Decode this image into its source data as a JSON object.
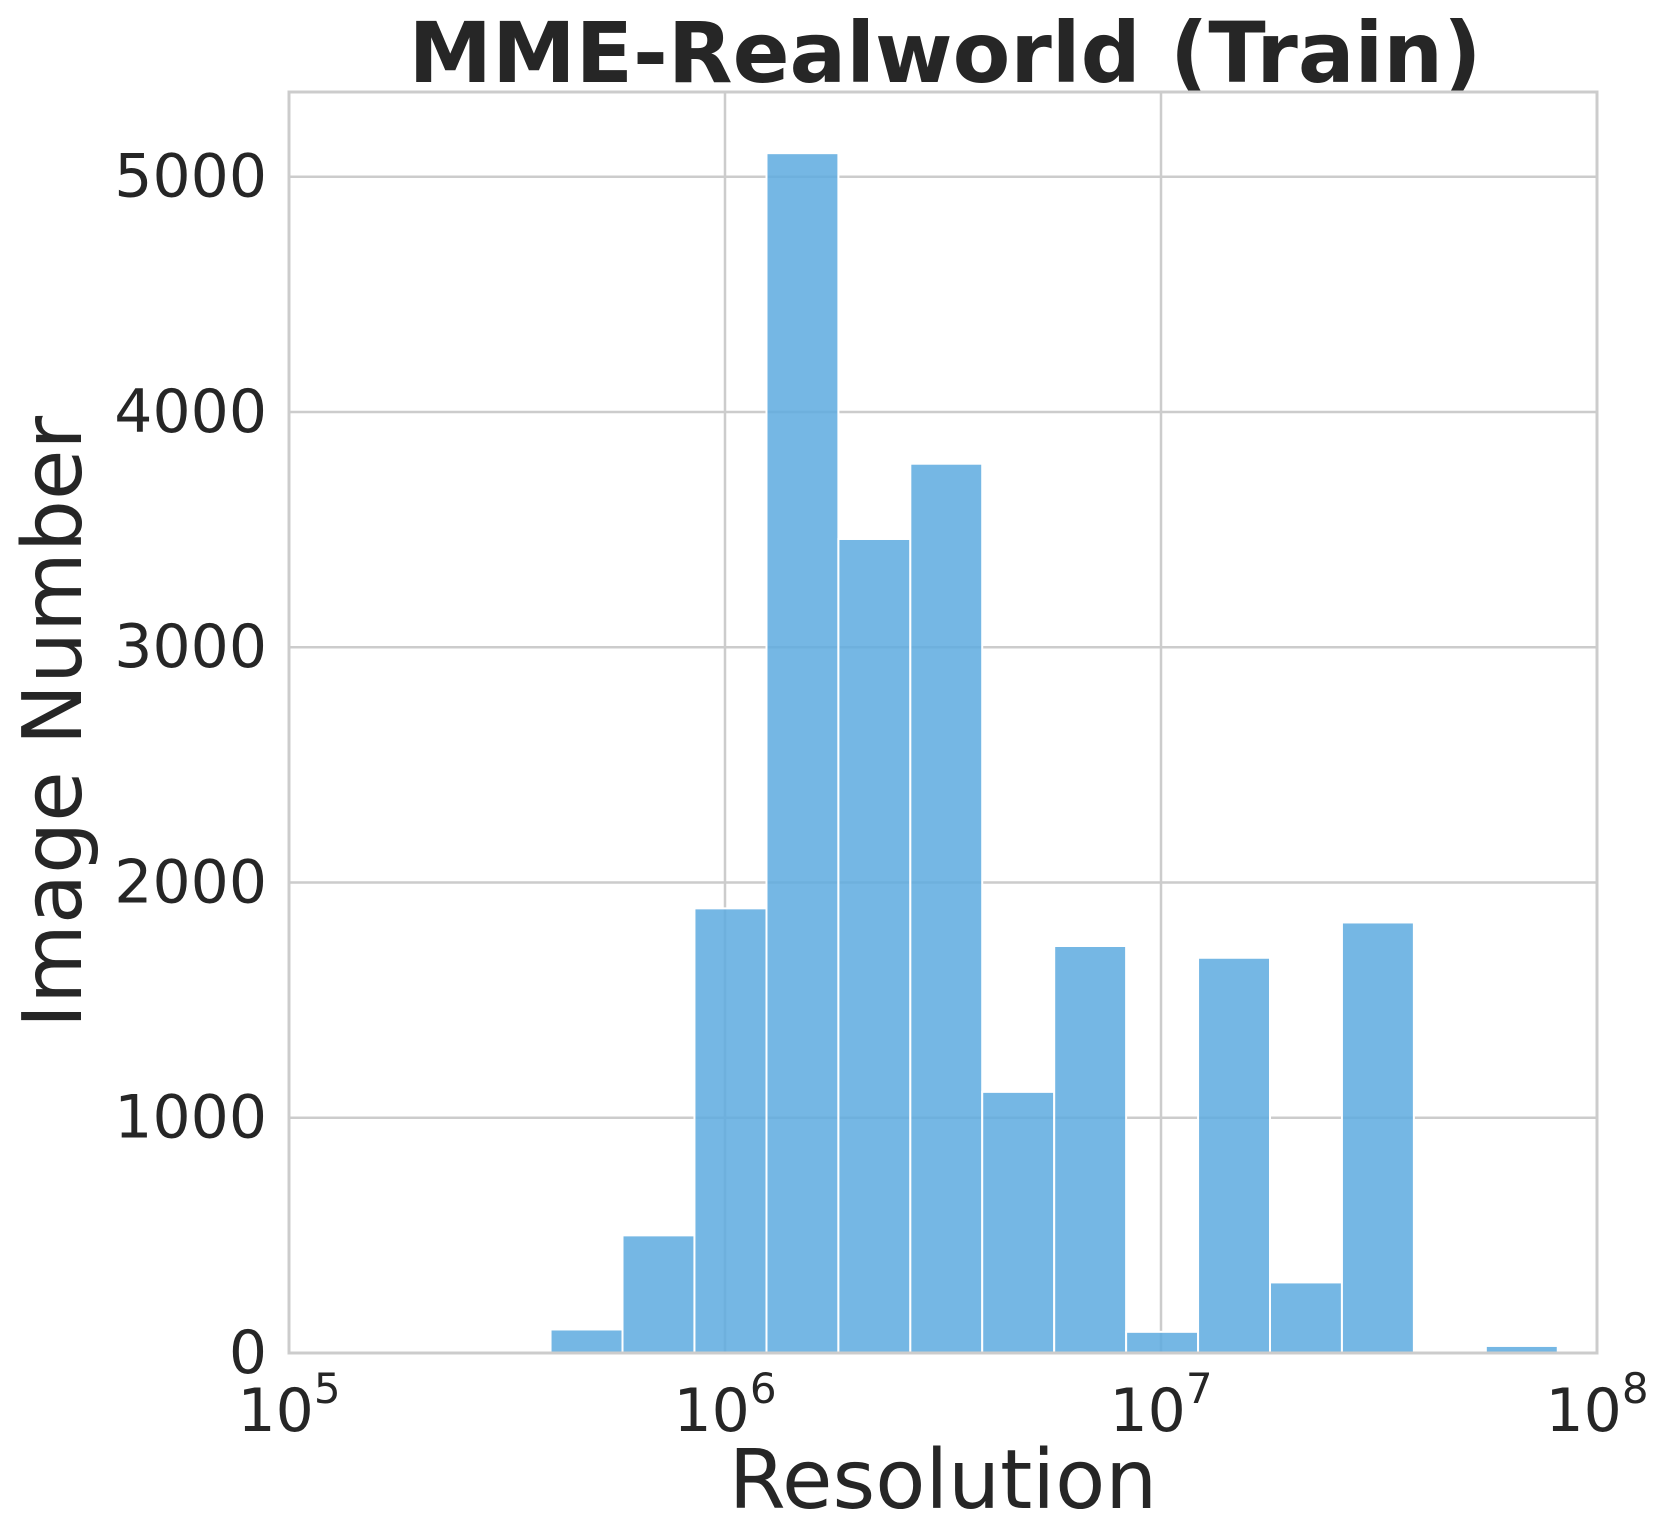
{
  "chart_data": {
    "type": "bar",
    "title": "MME-Realworld (Train)",
    "xlabel": "Resolution",
    "ylabel": "Image Number",
    "x_scale": "log",
    "xlim": [
      100000,
      100000000
    ],
    "ylim": [
      0,
      5360
    ],
    "x_ticks": [
      {
        "base": "10",
        "exp": "5",
        "value": 100000
      },
      {
        "base": "10",
        "exp": "6",
        "value": 1000000
      },
      {
        "base": "10",
        "exp": "7",
        "value": 10000000
      },
      {
        "base": "10",
        "exp": "8",
        "value": 100000000
      }
    ],
    "y_ticks": [
      {
        "label": "0",
        "value": 0
      },
      {
        "label": "1000",
        "value": 1000
      },
      {
        "label": "2000",
        "value": 2000
      },
      {
        "label": "3000",
        "value": 3000
      },
      {
        "label": "4000",
        "value": 4000
      },
      {
        "label": "5000",
        "value": 5000
      }
    ],
    "grid": true,
    "bar_color": "#5DAADF",
    "bins": [
      {
        "x0": 398000,
        "x1": 582000,
        "value": 100
      },
      {
        "x0": 582000,
        "x1": 851000,
        "value": 500
      },
      {
        "x0": 851000,
        "x1": 1245000,
        "value": 1890
      },
      {
        "x0": 1245000,
        "x1": 1820000,
        "value": 5100
      },
      {
        "x0": 1820000,
        "x1": 2661000,
        "value": 3460
      },
      {
        "x0": 2661000,
        "x1": 3890000,
        "value": 3780
      },
      {
        "x0": 3890000,
        "x1": 5689000,
        "value": 1110
      },
      {
        "x0": 5689000,
        "x1": 8318000,
        "value": 1730
      },
      {
        "x0": 8318000,
        "x1": 12162000,
        "value": 90
      },
      {
        "x0": 12162000,
        "x1": 17783000,
        "value": 1680
      },
      {
        "x0": 17783000,
        "x1": 26001000,
        "value": 300
      },
      {
        "x0": 26001000,
        "x1": 38019000,
        "value": 1830
      },
      {
        "x0": 38019000,
        "x1": 55590000,
        "value": 0
      },
      {
        "x0": 55590000,
        "x1": 81283000,
        "value": 30
      }
    ]
  }
}
